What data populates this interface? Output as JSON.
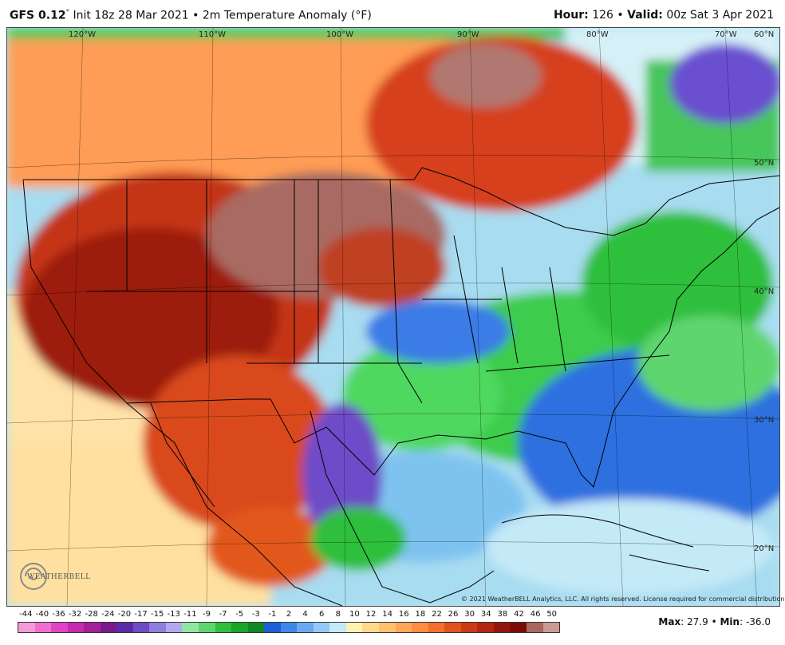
{
  "header": {
    "model": "GFS 0.12",
    "degree": "°",
    "init_text": "Init 18z 28 Mar 2021",
    "bullet": "•",
    "field": "2m Temperature Anomaly (°F)",
    "hour_label": "Hour:",
    "hour_value": "126",
    "valid_label": "Valid:",
    "valid_value": "00z Sat 3 Apr 2021"
  },
  "longitude_labels": [
    "120°W",
    "110°W",
    "100°W",
    "90°W",
    "80°W",
    "70°W",
    "60°N"
  ],
  "latitude_labels": [
    "50°N",
    "40°N",
    "30°N",
    "20°N"
  ],
  "logo": {
    "text": "WEATHERBELL",
    "icon": "swirl-logo-icon"
  },
  "copyright": "© 2021 WeatherBELL Analytics, LLC. All rights reserved. License required for commercial distribution.",
  "colorbar": {
    "labels": [
      "-44",
      "-40",
      "-36",
      "-32",
      "-28",
      "-24",
      "-20",
      "-17",
      "-15",
      "-13",
      "-11",
      "-9",
      "-7",
      "-5",
      "-3",
      "-1",
      "2",
      "4",
      "6",
      "8",
      "10",
      "12",
      "14",
      "16",
      "18",
      "22",
      "26",
      "30",
      "34",
      "38",
      "42",
      "46",
      "50"
    ],
    "colors": [
      "#f59ad9",
      "#ef6fd0",
      "#e044c4",
      "#c62ab0",
      "#a51f98",
      "#7a1a8a",
      "#5b2aa8",
      "#6e4cc8",
      "#8e7ee0",
      "#b3a8ee",
      "#8fe6a0",
      "#5fd56e",
      "#2fbf3c",
      "#1aa42a",
      "#0f8a22",
      "#1f5fd6",
      "#3d86ec",
      "#69a9f2",
      "#94c9f5",
      "#c4e9f7",
      "#fff3b0",
      "#ffd98a",
      "#ffc070",
      "#ffa657",
      "#ff8c40",
      "#f4702a",
      "#e2521c",
      "#cc3a14",
      "#b3250f",
      "#94150c",
      "#7a0c08",
      "#a8685f",
      "#c99a94"
    ]
  },
  "stats": {
    "max_label": "Max",
    "max_value": ": 27.9",
    "sep": "•",
    "min_label": "Min",
    "min_value": ": -36.0"
  }
}
